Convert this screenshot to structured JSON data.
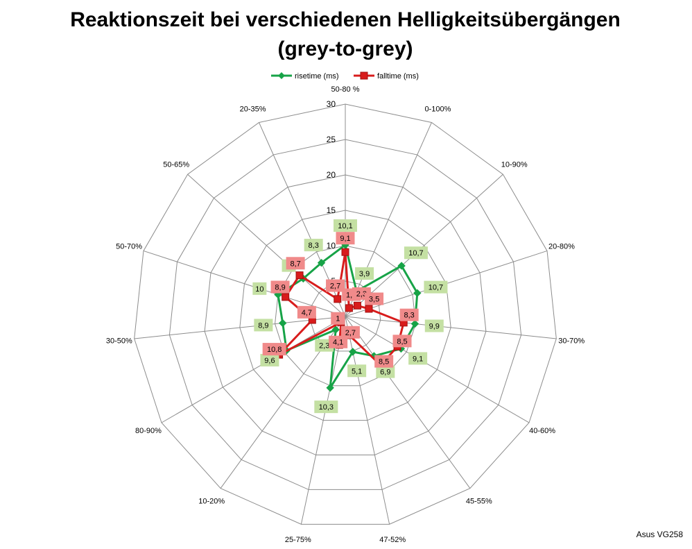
{
  "chart_data": {
    "type": "radar",
    "title": "Reaktionszeit bei verschiedenen Helligkeitsübergängen",
    "subtitle": "(grey-to-grey)",
    "categories": [
      "50-80 %",
      "0-100%",
      "10-90%",
      "20-80%",
      "30-70%",
      "40-60%",
      "45-55%",
      "47-52%",
      "25-75%",
      "10-20%",
      "80-90%",
      "30-50%",
      "50-70%",
      "50-65%",
      "20-35%"
    ],
    "rlim": [
      0,
      30
    ],
    "ticks": [
      0,
      5,
      10,
      15,
      20,
      25,
      30
    ],
    "tick_labels": [
      "0",
      "5",
      "10",
      "15",
      "20",
      "25",
      "30"
    ],
    "grid": true,
    "legend_position": "top",
    "series": [
      {
        "name": "risetime (ms)",
        "color": "#17a347",
        "label_color": "#c4e0a3",
        "marker": "diamond",
        "values": [
          10.1,
          3.9,
          10.7,
          10.7,
          9.9,
          9.1,
          6.9,
          5.1,
          10.3,
          2.3,
          9.6,
          8.9,
          10,
          8,
          8.3
        ],
        "labels": [
          "10,1",
          "3,9",
          "10,7",
          "10,7",
          "9,9",
          "9,1",
          "6,9",
          "5,1",
          "10,3",
          "2,3",
          "9,6",
          "8,9",
          "10",
          "8",
          "8,3"
        ]
      },
      {
        "name": "falltime (ms)",
        "color": "#d81c1c",
        "label_color": "#f08a8a",
        "marker": "square",
        "values": [
          9.1,
          1.3,
          2.3,
          3.5,
          8.3,
          8.5,
          8.5,
          2.7,
          4.1,
          1,
          10.8,
          4.7,
          8.9,
          8.7,
          2.7
        ],
        "labels": [
          "9,1",
          "1,3",
          "2,3",
          "3,5",
          "8,3",
          "8,5",
          "8,5",
          "2,7",
          "4,1",
          "1",
          "10,8",
          "4,7",
          "8,9",
          "8,7",
          "2,7"
        ]
      }
    ]
  },
  "footer": {
    "text": "Asus VG258"
  }
}
